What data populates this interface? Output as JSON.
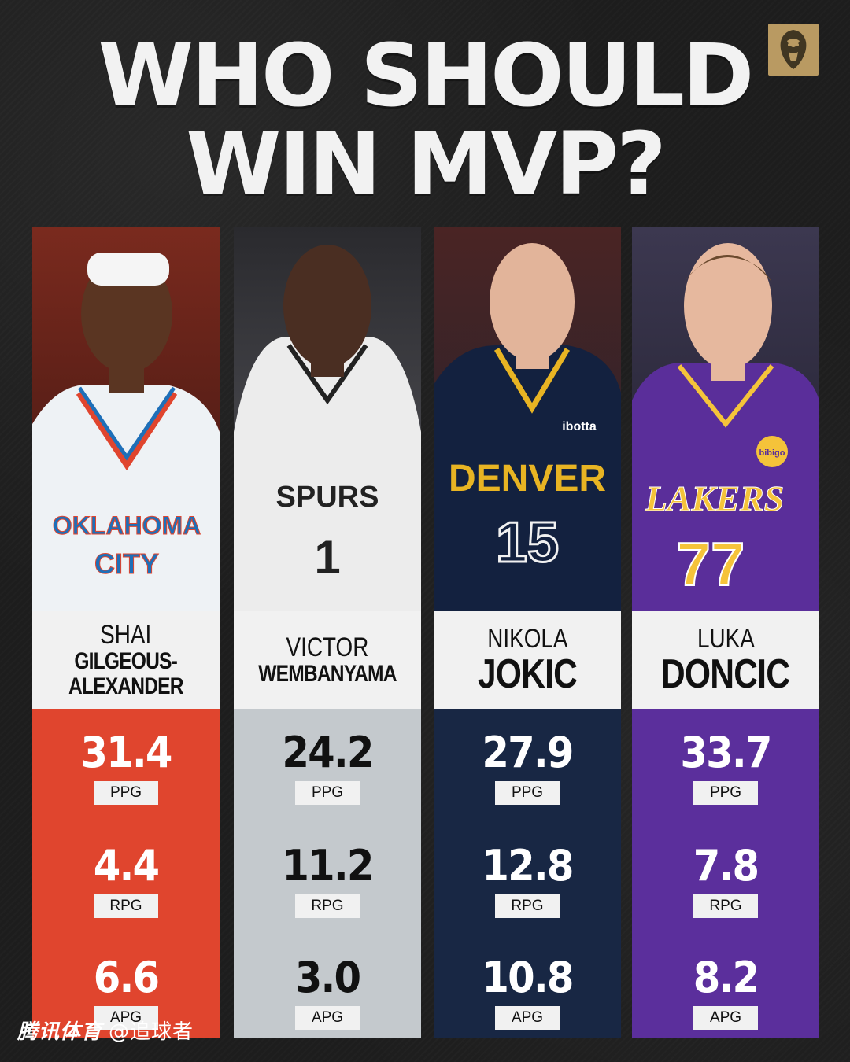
{
  "title": {
    "line1": "WHO SHOULD",
    "line2": "WIN MVP?"
  },
  "logo": {
    "icon": "lion-head-icon",
    "color": "#b99a62"
  },
  "players": [
    {
      "first": "SHAI",
      "last": "GILGEOUS-ALEXANDER",
      "last_line1": "GILGEOUS-",
      "last_line2": "ALEXANDER",
      "team_color": "#e0452e",
      "stat_text_color": "#ffffff",
      "jersey_text": "OKLAHOMA CITY",
      "stats": [
        {
          "value": "31.4",
          "label": "PPG"
        },
        {
          "value": "4.4",
          "label": "RPG"
        },
        {
          "value": "6.6",
          "label": "APG"
        }
      ]
    },
    {
      "first": "VICTOR",
      "last": "WEMBANYAMA",
      "team_color": "#c4c9cd",
      "stat_text_color": "#111111",
      "jersey_text": "SPURS",
      "jersey_number": "1",
      "stats": [
        {
          "value": "24.2",
          "label": "PPG"
        },
        {
          "value": "11.2",
          "label": "RPG"
        },
        {
          "value": "3.0",
          "label": "APG"
        }
      ]
    },
    {
      "first": "NIKOLA",
      "last": "JOKIC",
      "team_color": "#182744",
      "stat_text_color": "#ffffff",
      "jersey_text": "DENVER",
      "jersey_number": "15",
      "sponsor": "ibotta",
      "stats": [
        {
          "value": "27.9",
          "label": "PPG"
        },
        {
          "value": "12.8",
          "label": "RPG"
        },
        {
          "value": "10.8",
          "label": "APG"
        }
      ]
    },
    {
      "first": "LUKA",
      "last": "DONCIC",
      "team_color": "#5b2f9c",
      "stat_text_color": "#ffffff",
      "jersey_text": "LAKERS",
      "jersey_number": "77",
      "sponsor": "bibigo",
      "stats": [
        {
          "value": "33.7",
          "label": "PPG"
        },
        {
          "value": "7.8",
          "label": "RPG"
        },
        {
          "value": "8.2",
          "label": "APG"
        }
      ]
    }
  ],
  "watermark": {
    "brand": "腾讯体育",
    "handle": "@追球者"
  }
}
